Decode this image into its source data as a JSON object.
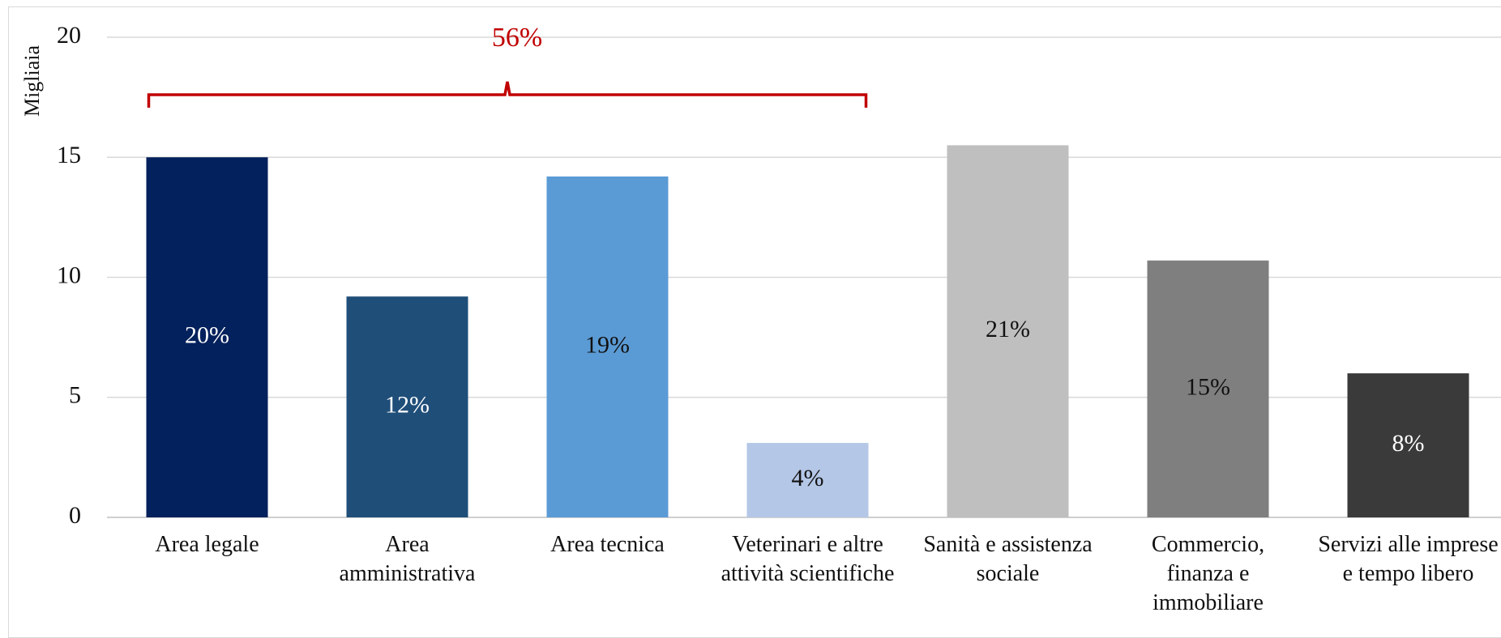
{
  "chart_data": {
    "type": "bar",
    "y_axis_label": "Migliaia",
    "categories": [
      "Area legale",
      "Area\namministrativa",
      "Area tecnica",
      "Veterinari e altre\nattività scientifiche",
      "Sanità e assistenza\nsociale",
      "Commercio,\nfinanza e\nimmobiliare",
      "Servizi alle imprese\ne tempo libero"
    ],
    "values": [
      15.0,
      9.2,
      14.2,
      3.1,
      15.5,
      10.7,
      6.0
    ],
    "bar_labels": [
      "20%",
      "12%",
      "19%",
      "4%",
      "21%",
      "15%",
      "8%"
    ],
    "colors": [
      "#03215c",
      "#1f4e79",
      "#5b9bd5",
      "#b4c7e7",
      "#bfbfbf",
      "#7f7f7f",
      "#3a3a3a"
    ],
    "ylim": [
      0,
      20
    ],
    "yticks": [
      0,
      5,
      10,
      15,
      20
    ],
    "grid": true,
    "annotation": {
      "text": "56%",
      "color": "#c00000",
      "span": [
        0,
        3
      ]
    }
  }
}
